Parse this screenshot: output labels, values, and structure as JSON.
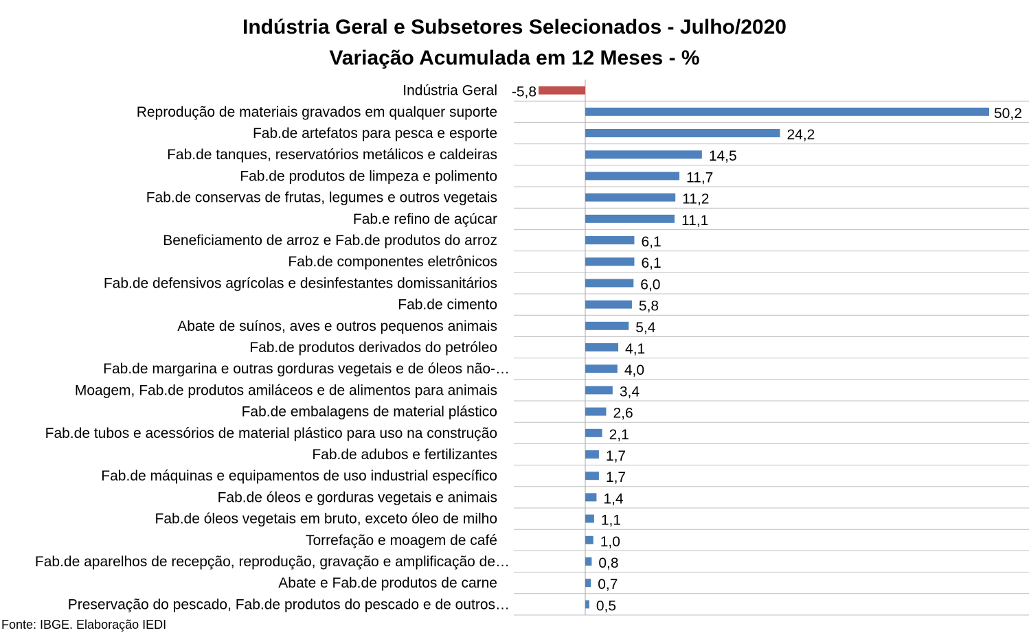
{
  "chart_data": {
    "type": "bar",
    "orientation": "horizontal",
    "title": "Indústria Geral e Subsetores Selecionados - Julho/2020",
    "subtitle": "Variação Acumulada em 12 Meses - %",
    "categories": [
      "Indústria Geral",
      "Reprodução de materiais gravados em qualquer suporte",
      "Fab.de artefatos para pesca e esporte",
      "Fab.de tanques, reservatórios metálicos e caldeiras",
      "Fab.de produtos de limpeza e polimento",
      "Fab.de conservas de frutas, legumes e outros vegetais",
      "Fab.e refino de açúcar",
      "Beneficiamento de arroz e Fab.de produtos do arroz",
      "Fab.de componentes eletrônicos",
      "Fab.de defensivos agrícolas e desinfestantes domissanitários",
      "Fab.de cimento",
      "Abate de suínos, aves e outros pequenos animais",
      "Fab.de produtos derivados do petróleo",
      "Fab.de margarina e outras gorduras vegetais e de óleos não-…",
      "Moagem, Fab.de produtos amiláceos e de alimentos para animais",
      "Fab.de embalagens de material plástico",
      "Fab.de tubos e acessórios de material plástico para uso na construção",
      "Fab.de adubos e fertilizantes",
      "Fab.de máquinas e equipamentos de uso industrial específico",
      "Fab.de óleos e gorduras vegetais e animais",
      "Fab.de óleos vegetais em bruto, exceto óleo de milho",
      "Torrefação e moagem de café",
      "Fab.de aparelhos de recepção, reprodução, gravação e amplificação de…",
      "Abate e Fab.de produtos de carne",
      "Preservação do pescado, Fab.de produtos do pescado e de outros…"
    ],
    "values": [
      -5.8,
      50.2,
      24.2,
      14.5,
      11.7,
      11.2,
      11.1,
      6.1,
      6.1,
      6.0,
      5.8,
      5.4,
      4.1,
      4.0,
      3.4,
      2.6,
      2.1,
      1.7,
      1.7,
      1.4,
      1.1,
      1.0,
      0.8,
      0.7,
      0.5
    ],
    "value_labels": [
      "-5,8",
      "50,2",
      "24,2",
      "14,5",
      "11,7",
      "11,2",
      "11,1",
      "6,1",
      "6,1",
      "6,0",
      "5,8",
      "5,4",
      "4,1",
      "4,0",
      "3,4",
      "2,6",
      "2,1",
      "1,7",
      "1,7",
      "1,4",
      "1,1",
      "1,0",
      "0,8",
      "0,7",
      "0,5"
    ],
    "colors": {
      "negative": "#C0504D",
      "positive": "#4F81BD",
      "grid": "#BFBFBF",
      "axis": "#A6A6A6"
    },
    "xlim": [
      -5.8,
      50.2
    ],
    "grid": true,
    "legend": "none"
  },
  "footer": "Fonte: IBGE. Elaboração IEDI"
}
